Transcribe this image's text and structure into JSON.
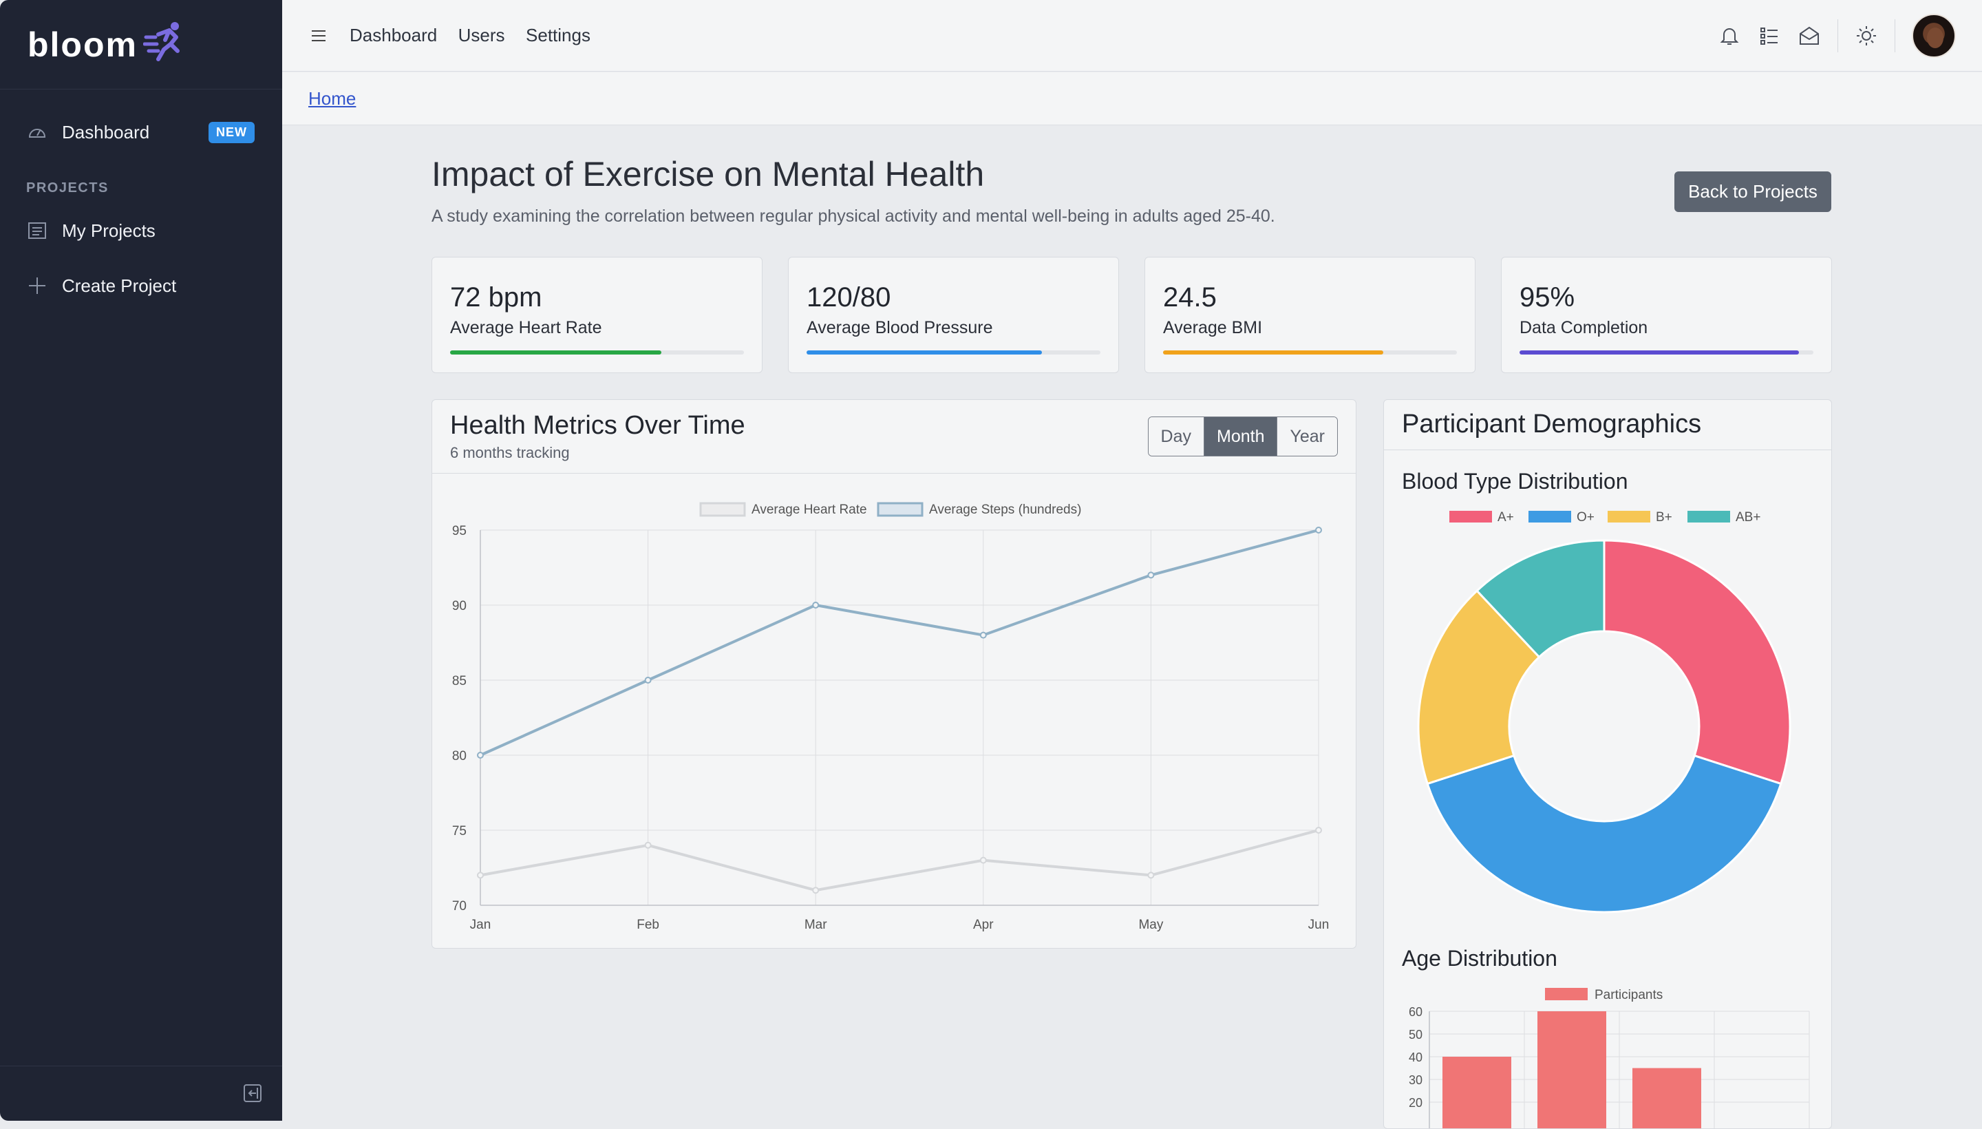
{
  "app": {
    "name": "bloom"
  },
  "sidebar": {
    "items": [
      {
        "label": "Dashboard",
        "badge": "NEW",
        "icon": "gauge-icon"
      }
    ],
    "section_heading": "PROJECTS",
    "project_items": [
      {
        "label": "My Projects",
        "icon": "list-icon"
      },
      {
        "label": "Create Project",
        "icon": "plus-icon"
      }
    ]
  },
  "topbar": {
    "nav": [
      "Dashboard",
      "Users",
      "Settings"
    ],
    "icons": [
      "bell-icon",
      "checklist-icon",
      "mail-icon",
      "sun-icon"
    ]
  },
  "breadcrumb": {
    "home": "Home"
  },
  "page": {
    "title": "Impact of Exercise on Mental Health",
    "subtitle": "A study examining the correlation between regular physical activity and mental well-being in adults aged 25-40.",
    "back_button": "Back to Projects"
  },
  "stats": [
    {
      "value": "72 bpm",
      "label": "Average Heart Rate",
      "progress": 0.72,
      "color": "#28a745"
    },
    {
      "value": "120/80",
      "label": "Average Blood Pressure",
      "progress": 0.8,
      "color": "#2f8ee8"
    },
    {
      "value": "24.5",
      "label": "Average BMI",
      "progress": 0.75,
      "color": "#f0a21b"
    },
    {
      "value": "95%",
      "label": "Data Completion",
      "progress": 0.95,
      "color": "#5b4bd1"
    }
  ],
  "metrics_card": {
    "title": "Health Metrics Over Time",
    "subtitle": "6 months tracking",
    "ranges": [
      "Day",
      "Month",
      "Year"
    ],
    "active_range": "Month"
  },
  "demographics_card": {
    "title": "Participant Demographics",
    "blood_type_title": "Blood Type Distribution",
    "age_title": "Age Distribution"
  },
  "chart_data": [
    {
      "type": "line",
      "categories": [
        "Jan",
        "Feb",
        "Mar",
        "Apr",
        "May",
        "Jun"
      ],
      "series": [
        {
          "name": "Average Heart Rate",
          "values": [
            72,
            74,
            71,
            73,
            72,
            75
          ],
          "color": "#d4d6d9"
        },
        {
          "name": "Average Steps (hundreds)",
          "values": [
            80,
            85,
            90,
            88,
            92,
            95
          ],
          "color": "#8fb0c6"
        }
      ],
      "ylim": [
        70,
        95
      ],
      "yticks": [
        70,
        75,
        80,
        85,
        90,
        95
      ],
      "legend": "top",
      "grid": true
    },
    {
      "type": "pie",
      "donut": true,
      "labels": [
        "A+",
        "O+",
        "B+",
        "AB+"
      ],
      "values": [
        30,
        40,
        18,
        12
      ],
      "colors": [
        "#f2607a",
        "#3d9be3",
        "#f6c654",
        "#4bbab8"
      ],
      "legend": "top"
    },
    {
      "type": "bar",
      "categories": [
        "",
        "",
        "",
        ""
      ],
      "series": [
        {
          "name": "Participants",
          "values": [
            40,
            60,
            35,
            0
          ],
          "color": "#f07575"
        }
      ],
      "yticks": [
        20,
        30,
        40,
        50,
        60
      ],
      "legend": "top",
      "grid": true
    }
  ]
}
